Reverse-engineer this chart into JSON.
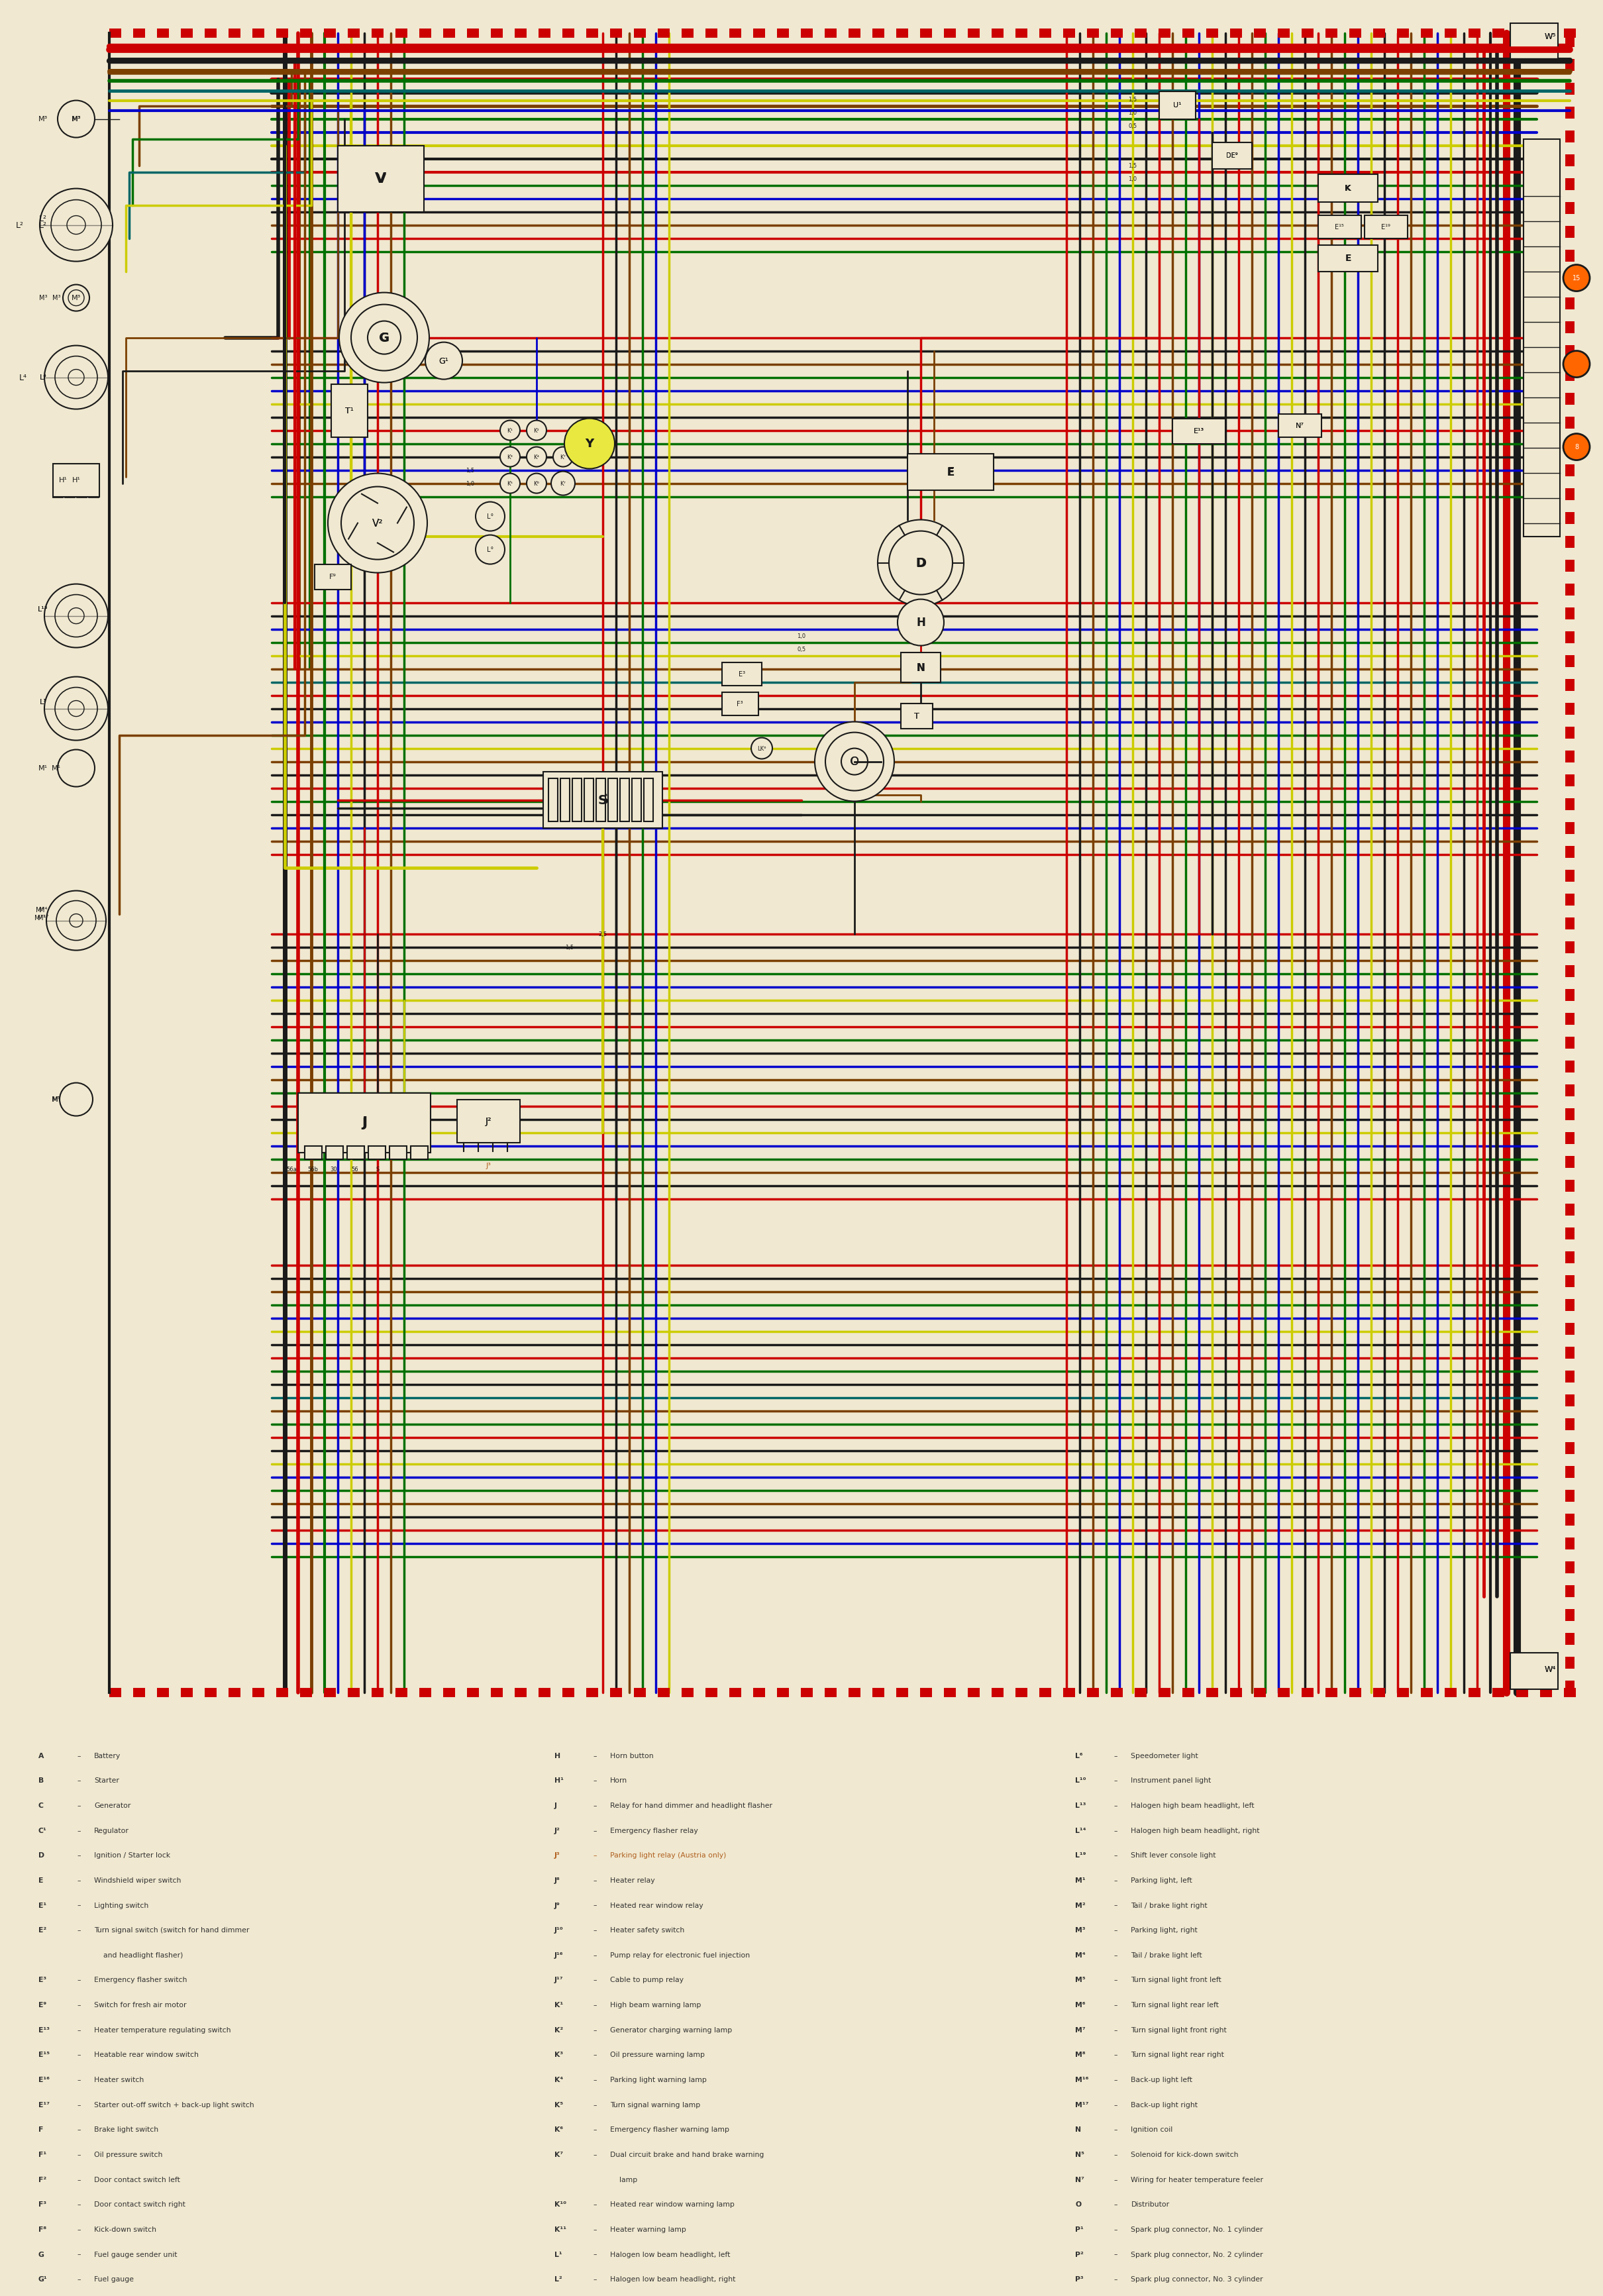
{
  "bg_color": "#f0e8d0",
  "legend_col1": [
    [
      "A",
      "Battery"
    ],
    [
      "B",
      "Starter"
    ],
    [
      "C",
      "Generator"
    ],
    [
      "C¹",
      "Regulator"
    ],
    [
      "D",
      "Ignition / Starter lock"
    ],
    [
      "E",
      "Windshield wiper switch"
    ],
    [
      "E¹",
      "Lighting switch"
    ],
    [
      "E²",
      "Turn signal switch (switch for hand dimmer"
    ],
    [
      "",
      "and headlight flasher)"
    ],
    [
      "E³",
      "Emergency flasher switch"
    ],
    [
      "E⁹",
      "Switch for fresh air motor"
    ],
    [
      "E¹³",
      "Heater temperature regulating switch"
    ],
    [
      "E¹⁵",
      "Heatable rear window switch"
    ],
    [
      "E¹⁶",
      "Heater switch"
    ],
    [
      "E¹⁷",
      "Starter out-off switch + back-up light switch"
    ],
    [
      "F",
      "Brake light switch"
    ],
    [
      "F¹",
      "Oil pressure switch"
    ],
    [
      "F²",
      "Door contact switch left"
    ],
    [
      "F³",
      "Door contact switch right"
    ],
    [
      "F⁸",
      "Kick-down switch"
    ],
    [
      "G",
      "Fuel gauge sender unit"
    ],
    [
      "G¹",
      "Fuel gauge"
    ]
  ],
  "legend_col2": [
    [
      "H",
      "Horn button"
    ],
    [
      "H¹",
      "Horn"
    ],
    [
      "J",
      "Relay for hand dimmer and headlight flasher"
    ],
    [
      "J²",
      "Emergency flasher relay"
    ],
    [
      "J³",
      "Parking light relay (Austria only)"
    ],
    [
      "J⁸",
      "Heater relay"
    ],
    [
      "J⁹",
      "Heated rear window relay"
    ],
    [
      "J¹⁰",
      "Heater safety switch"
    ],
    [
      "J¹⁶",
      "Pump relay for electronic fuel injection"
    ],
    [
      "J¹⁷",
      "Cable to pump relay"
    ],
    [
      "K¹",
      "High beam warning lamp"
    ],
    [
      "K²",
      "Generator charging warning lamp"
    ],
    [
      "K³",
      "Oil pressure warning lamp"
    ],
    [
      "K⁴",
      "Parking light warning lamp"
    ],
    [
      "K⁵",
      "Turn signal warning lamp"
    ],
    [
      "K⁶",
      "Emergency flasher warning lamp"
    ],
    [
      "K⁷",
      "Dual circuit brake and hand brake warning"
    ],
    [
      "",
      "lamp"
    ],
    [
      "K¹⁰",
      "Heated rear window warning lamp"
    ],
    [
      "K¹¹",
      "Heater warning lamp"
    ],
    [
      "L¹",
      "Halogen low beam headlight, left"
    ],
    [
      "L²",
      "Halogen low beam headlight, right"
    ]
  ],
  "legend_col3": [
    [
      "L⁶",
      "Speedometer light"
    ],
    [
      "L¹⁰",
      "Instrument panel light"
    ],
    [
      "L¹³",
      "Halogen high beam headlight, left"
    ],
    [
      "L¹⁴",
      "Halogen high beam headlight, right"
    ],
    [
      "L¹⁹",
      "Shift lever console light"
    ],
    [
      "M¹",
      "Parking light, left"
    ],
    [
      "M²",
      "Tail / brake light right"
    ],
    [
      "M³",
      "Parking light, right"
    ],
    [
      "M⁴",
      "Tail / brake light left"
    ],
    [
      "M⁵",
      "Turn signal light front left"
    ],
    [
      "M⁶",
      "Turn signal light rear left"
    ],
    [
      "M⁷",
      "Turn signal light front right"
    ],
    [
      "M⁸",
      "Turn signal light rear right"
    ],
    [
      "M¹⁶",
      "Back-up light left"
    ],
    [
      "M¹⁷",
      "Back-up light right"
    ],
    [
      "N",
      "Ignition coil"
    ],
    [
      "N⁵",
      "Solenoid for kick-down switch"
    ],
    [
      "N⁷",
      "Wiring for heater temperature feeler"
    ],
    [
      "O",
      "Distributor"
    ],
    [
      "P¹",
      "Spark plug connector, No. 1 cylinder"
    ],
    [
      "P²",
      "Spark plug connector, No. 2 cylinder"
    ],
    [
      "P³",
      "Spark plug connector, No. 3 cylinder"
    ]
  ],
  "j3_color": "#b06020",
  "text_color": "#333333"
}
